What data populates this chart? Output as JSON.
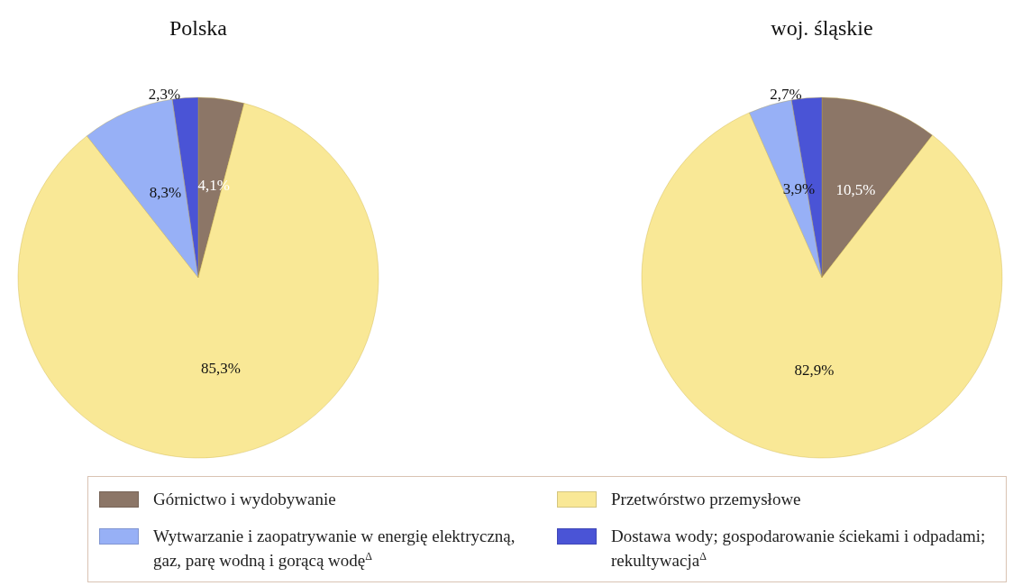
{
  "chart_data": [
    {
      "type": "pie",
      "title": "Polska",
      "categories": [
        "Górnictwo i wydobywanie",
        "Przetwórstwo przemysłowe",
        "Wytwarzanie i zaopatrywanie w energię elektryczną, gaz, parę wodną i gorącą wodę$^{Δ}$",
        "Dostawa wody; gospodarowanie ściekami i odpadami; rekultywacja$^{Δ}$"
      ],
      "values": [
        4.1,
        85.3,
        8.3,
        2.3
      ],
      "value_labels": [
        "4,1%",
        "85,3%",
        "8,3%",
        "2,3%"
      ],
      "colors": [
        "#8c7667",
        "#f9e896",
        "#97b0f6",
        "#4a54d6"
      ],
      "legend": "bottom"
    },
    {
      "type": "pie",
      "title": "woj. śląskie",
      "categories": [
        null,
        null,
        null,
        null
      ],
      "values": [
        10.5,
        82.9,
        3.9,
        2.7
      ],
      "value_labels": [
        "10,5%",
        "82,9%",
        "3,9%",
        "2,7%"
      ],
      "colors": [
        "#8c7667",
        "#f9e896",
        "#97b0f6",
        "#4a54d6"
      ]
    }
  ]
}
